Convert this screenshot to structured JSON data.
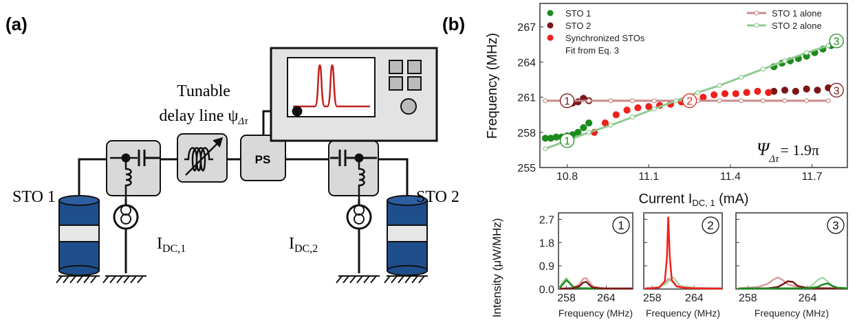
{
  "diagram": {
    "panel_label": "(a)",
    "panel_b_label": "(b)",
    "delay_line": {
      "line1": "Tunable",
      "line2": "delay line ψ",
      "sub": "Δτ"
    },
    "phase_shifter": "PS",
    "sto1": "STO 1",
    "sto2": "STO 2",
    "bias1": {
      "main": "I",
      "sub": "DC,1"
    },
    "bias2": {
      "main": "I",
      "sub": "DC,2"
    }
  },
  "chart_data": [
    {
      "type": "scatter",
      "y_label": "Frequency (MHz)",
      "x_label_parts": [
        "Current I",
        "DC, 1",
        " (mA)"
      ],
      "xlim": [
        10.7,
        11.83
      ],
      "ylim": [
        255,
        269
      ],
      "xticks": [
        10.8,
        11.1,
        11.4,
        11.7
      ],
      "yticks": [
        255,
        258,
        261,
        264,
        267
      ],
      "fit_label": "Fit from Eq. 3",
      "annotation_psi": {
        "symbol": "Ψ",
        "sub": "Δτ",
        "rest": "= 1.9π"
      },
      "annotations": [
        {
          "text": "1",
          "color": "#7b1616"
        },
        {
          "text": "1",
          "color": "#1e8a1e"
        },
        {
          "text": "2",
          "color": "#e8261c"
        },
        {
          "text": "3",
          "color": "#1e8a1e"
        },
        {
          "text": "3",
          "color": "#7b1616"
        }
      ],
      "series": [
        {
          "name": "STO 1",
          "color": "#1e8a1e",
          "style": "points",
          "x": [
            10.72,
            10.74,
            10.76,
            10.78,
            10.8,
            10.82,
            10.84,
            10.86,
            10.88,
            11.56,
            11.59,
            11.62,
            11.65,
            11.68,
            11.71,
            11.74,
            11.77,
            11.8
          ],
          "values": [
            257.5,
            257.5,
            257.6,
            257.6,
            257.7,
            257.8,
            258.0,
            258.4,
            258.8,
            263.6,
            263.9,
            264.1,
            264.3,
            264.5,
            264.8,
            265.1,
            265.4,
            265.7
          ]
        },
        {
          "name": "STO 2",
          "color": "#7b1616",
          "style": "points",
          "x": [
            10.8,
            10.82,
            10.84,
            10.86,
            10.88,
            11.56,
            11.6,
            11.64,
            11.68,
            11.72,
            11.76,
            11.8
          ],
          "values": [
            260.4,
            260.5,
            260.6,
            260.9,
            260.7,
            261.5,
            261.6,
            261.5,
            261.7,
            261.6,
            261.8,
            261.7
          ]
        },
        {
          "name": "Synchronized STOs",
          "color": "#f0201c",
          "style": "points",
          "x": [
            10.9,
            10.94,
            10.98,
            11.02,
            11.06,
            11.1,
            11.14,
            11.18,
            11.22,
            11.26,
            11.3,
            11.34,
            11.38,
            11.42,
            11.46,
            11.5,
            11.54
          ],
          "values": [
            258.0,
            258.8,
            259.5,
            259.9,
            260.1,
            260.2,
            260.3,
            260.4,
            260.6,
            260.8,
            261.0,
            261.2,
            261.3,
            261.3,
            261.4,
            261.5,
            261.4
          ]
        },
        {
          "name": "STO 1 alone",
          "color": "#c98a8a",
          "style": "line",
          "x": [
            10.72,
            10.8,
            10.88,
            10.96,
            11.04,
            11.12,
            11.2,
            11.28,
            11.36,
            11.44,
            11.52,
            11.6,
            11.68,
            11.76
          ],
          "values": [
            260.7,
            260.7,
            260.7,
            260.7,
            260.7,
            260.7,
            260.7,
            260.7,
            260.7,
            260.7,
            260.7,
            260.7,
            260.7,
            260.7
          ]
        },
        {
          "name": "STO 2 alone",
          "color": "#8fca8f",
          "style": "line",
          "x": [
            10.72,
            10.8,
            10.88,
            10.96,
            11.04,
            11.12,
            11.2,
            11.28,
            11.36,
            11.44,
            11.52,
            11.6,
            11.68,
            11.76
          ],
          "values": [
            256.6,
            257.3,
            258.0,
            258.6,
            259.3,
            260.0,
            260.7,
            261.4,
            262.0,
            262.7,
            263.4,
            264.1,
            264.8,
            265.4
          ]
        }
      ]
    },
    {
      "type": "line",
      "title": "1",
      "y_label": "Intensity (μW/MHz)",
      "x_label": "Frequency (MHz)",
      "xlim": [
        256.8,
        268
      ],
      "ylim": [
        0,
        2.95
      ],
      "xticks": [
        258,
        264
      ],
      "yticks": [
        {
          "value": 0,
          "label": "0.0"
        },
        0.9,
        1.8,
        2.7
      ],
      "series": [
        {
          "color": "#a6d8a6",
          "x": [
            257,
            257.5,
            258,
            258.5,
            259,
            260,
            262,
            264,
            266,
            268
          ],
          "values": [
            0.08,
            0.3,
            0.42,
            0.25,
            0.1,
            0.05,
            0.04,
            0.03,
            0.03,
            0.03
          ]
        },
        {
          "color": "#d9a0a0",
          "x": [
            257,
            258,
            259,
            260,
            260.5,
            261,
            261.5,
            262,
            263,
            264,
            266,
            268
          ],
          "values": [
            0.03,
            0.03,
            0.05,
            0.2,
            0.4,
            0.42,
            0.25,
            0.1,
            0.05,
            0.03,
            0.03,
            0.03
          ]
        },
        {
          "color": "#1e8a1e",
          "x": [
            257,
            257.5,
            258,
            258.5,
            259,
            260,
            262,
            264,
            266,
            268
          ],
          "values": [
            0.05,
            0.2,
            0.35,
            0.22,
            0.08,
            0.03,
            0.02,
            0.02,
            0.02,
            0.02
          ]
        },
        {
          "color": "#7b1616",
          "x": [
            257,
            258,
            259,
            260,
            260.5,
            261,
            261.5,
            262,
            263,
            264,
            266,
            268
          ],
          "values": [
            0.02,
            0.02,
            0.03,
            0.12,
            0.25,
            0.28,
            0.15,
            0.06,
            0.03,
            0.02,
            0.02,
            0.02
          ]
        }
      ]
    },
    {
      "type": "line",
      "title": "2",
      "x_label": "Frequency (MHz)",
      "xlim": [
        256.8,
        268
      ],
      "ylim": [
        0,
        2.95
      ],
      "xticks": [
        258,
        264
      ],
      "yticks": [
        {
          "value": 0,
          "label": "0.0"
        },
        0.9,
        1.8,
        2.7
      ],
      "series": [
        {
          "color": "#a6d8a6",
          "x": [
            257,
            259,
            260,
            260.5,
            261,
            261.5,
            262,
            264,
            268
          ],
          "values": [
            0.03,
            0.08,
            0.2,
            0.35,
            0.45,
            0.3,
            0.12,
            0.05,
            0.03
          ]
        },
        {
          "color": "#d9a0a0",
          "x": [
            257,
            259,
            259.8,
            260.3,
            260.8,
            261.5,
            263,
            268
          ],
          "values": [
            0.03,
            0.07,
            0.25,
            0.4,
            0.3,
            0.12,
            0.04,
            0.03
          ]
        },
        {
          "color": "#f0201c",
          "x": [
            257,
            258,
            259,
            259.8,
            260.1,
            260.3,
            260.5,
            260.8,
            261.5,
            262.5,
            264,
            266,
            268
          ],
          "values": [
            0.02,
            0.03,
            0.06,
            0.3,
            1.2,
            2.8,
            1.3,
            0.35,
            0.1,
            0.05,
            0.03,
            0.02,
            0.02
          ]
        }
      ]
    },
    {
      "type": "line",
      "title": "3",
      "x_label": "Frequency (MHz)",
      "xlim": [
        256.8,
        268
      ],
      "ylim": [
        0,
        2.95
      ],
      "xticks": [
        258,
        264
      ],
      "yticks": [
        {
          "value": 0,
          "label": "0.0"
        },
        0.9,
        1.8,
        2.7
      ],
      "series": [
        {
          "color": "#d9a0a0",
          "x": [
            257,
            259,
            260,
            260.5,
            261,
            261.5,
            262,
            263,
            264,
            266,
            268
          ],
          "values": [
            0.03,
            0.08,
            0.2,
            0.35,
            0.45,
            0.35,
            0.18,
            0.08,
            0.04,
            0.03,
            0.03
          ]
        },
        {
          "color": "#a6d8a6",
          "x": [
            257,
            263,
            264,
            264.5,
            265,
            265.5,
            266,
            266.5,
            267,
            268
          ],
          "values": [
            0.03,
            0.03,
            0.06,
            0.15,
            0.35,
            0.45,
            0.3,
            0.12,
            0.06,
            0.04
          ]
        },
        {
          "color": "#7b1616",
          "x": [
            257,
            260,
            261,
            261.5,
            262,
            262.5,
            263,
            264,
            268
          ],
          "values": [
            0.02,
            0.03,
            0.08,
            0.18,
            0.3,
            0.28,
            0.12,
            0.04,
            0.02
          ]
        },
        {
          "color": "#1e8a1e",
          "x": [
            257,
            264,
            265,
            265.5,
            266,
            266.5,
            267,
            268
          ],
          "values": [
            0.02,
            0.03,
            0.08,
            0.17,
            0.22,
            0.12,
            0.05,
            0.03
          ]
        }
      ]
    }
  ]
}
